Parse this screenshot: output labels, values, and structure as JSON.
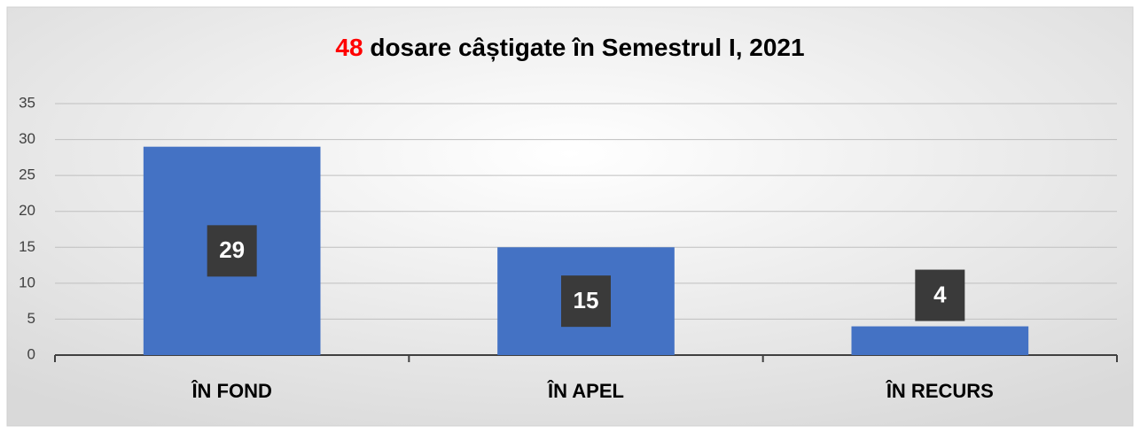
{
  "chart_data": {
    "type": "bar",
    "title_highlight": "48",
    "title": "dosare câștigate în Semestrul I, 2021",
    "categories": [
      "ÎN FOND",
      "ÎN APEL",
      "ÎN RECURS"
    ],
    "values": [
      29,
      15,
      4
    ],
    "color": "#4472c4",
    "highlight_color": "#ff0000",
    "ylim": [
      0,
      35
    ],
    "yticks": [
      0,
      5,
      10,
      15,
      20,
      25,
      30,
      35
    ],
    "grid": true
  }
}
